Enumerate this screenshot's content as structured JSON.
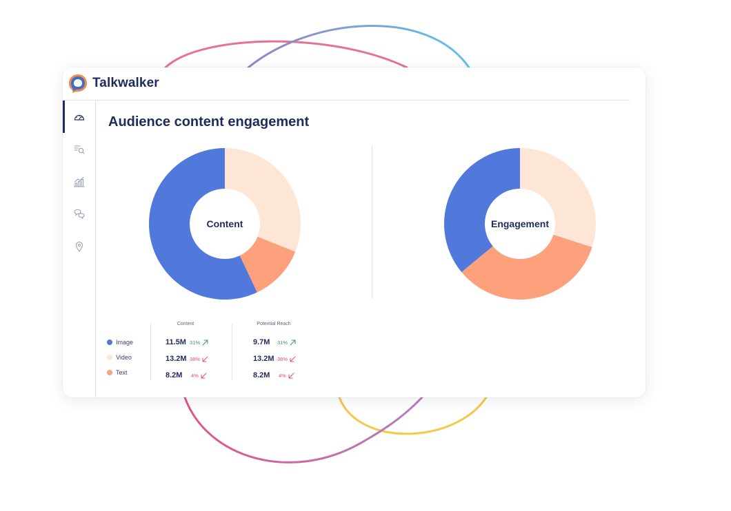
{
  "brand": {
    "name": "Talkwalker"
  },
  "sidebar": {
    "items": [
      {
        "icon": "dashboard-icon",
        "active": true
      },
      {
        "icon": "search-list-icon",
        "active": false
      },
      {
        "icon": "bar-chart-icon",
        "active": false
      },
      {
        "icon": "chat-bubbles-icon",
        "active": false
      },
      {
        "icon": "map-pin-icon",
        "active": false
      }
    ]
  },
  "page": {
    "title": "Audience content engagement"
  },
  "chart_data": [
    {
      "type": "pie",
      "center_label": "Content",
      "categories": [
        "Video",
        "Text",
        "Image"
      ],
      "values": [
        31,
        12,
        57
      ],
      "colors": [
        "#fde6d6",
        "#fda07c",
        "#5178db"
      ]
    },
    {
      "type": "pie",
      "center_label": "Engagement",
      "categories": [
        "Video",
        "Text",
        "Image"
      ],
      "values": [
        30,
        34,
        36
      ],
      "colors": [
        "#fde6d6",
        "#fda07c",
        "#5178db"
      ]
    }
  ],
  "legend": [
    {
      "label": "Image",
      "color": "#5178db"
    },
    {
      "label": "Video",
      "color": "#fde6d6"
    },
    {
      "label": "Text",
      "color": "#fda07c"
    }
  ],
  "table": {
    "columns": [
      "Content",
      "Potential Reach"
    ],
    "rows": [
      {
        "content": {
          "value": "11.5M",
          "pct": "31%",
          "trend": "up"
        },
        "reach": {
          "value": "9.7M",
          "pct": "31%",
          "trend": "up"
        }
      },
      {
        "content": {
          "value": "13.2M",
          "pct": "38%",
          "trend": "down"
        },
        "reach": {
          "value": "13.2M",
          "pct": "38%",
          "trend": "down"
        }
      },
      {
        "content": {
          "value": "8.2M",
          "pct": "4%",
          "trend": "down"
        },
        "reach": {
          "value": "8.2M",
          "pct": "4%",
          "trend": "down"
        }
      }
    ]
  },
  "colors": {
    "up": "#2e9e52",
    "down": "#e0505a",
    "navy": "#1f2b5c"
  }
}
